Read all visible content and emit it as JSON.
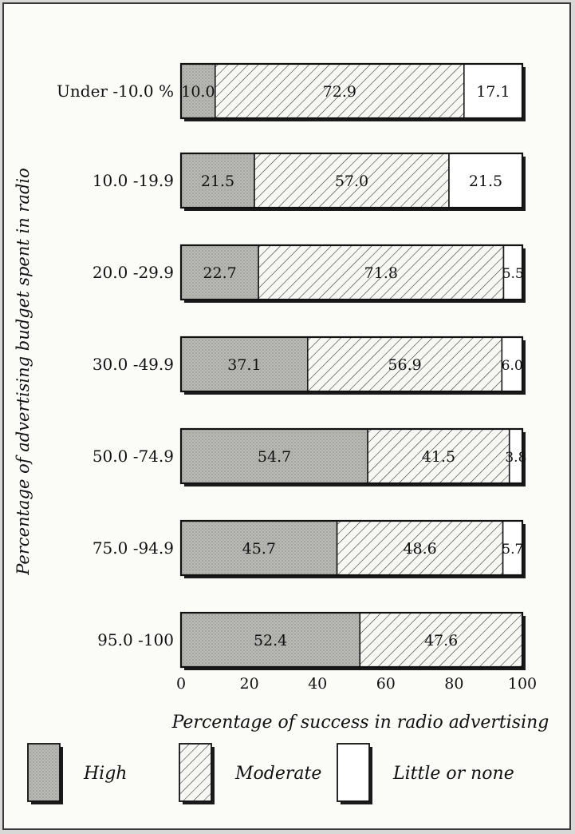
{
  "chart_data": {
    "type": "bar",
    "stacked": true,
    "orientation": "horizontal",
    "title": "",
    "xlabel": "Percentage of success in radio advertising",
    "ylabel": "Percentage of advertising budget spent in radio",
    "xlim": [
      0,
      100
    ],
    "xticks": [
      "0",
      "20",
      "40",
      "60",
      "80",
      "100"
    ],
    "grid": false,
    "legend_position": "bottom",
    "categories": [
      "Under -10.0 %",
      "10.0 -19.9",
      "20.0 -29.9",
      "30.0 -49.9",
      "50.0 -74.9",
      "75.0 -94.9",
      "95.0 -100"
    ],
    "series": [
      {
        "name": "High",
        "values": [
          10.0,
          21.5,
          22.7,
          37.1,
          54.7,
          45.7,
          52.4
        ],
        "labels": [
          "10.0",
          "21.5",
          "22.7",
          "37.1",
          "54.7",
          "45.7",
          "52.4"
        ],
        "fill": "stipple",
        "color": "#a9a9a6"
      },
      {
        "name": "Moderate",
        "values": [
          72.9,
          57.0,
          71.8,
          56.9,
          41.5,
          48.6,
          47.6
        ],
        "labels": [
          "72.9",
          "57.0",
          "71.8",
          "56.9",
          "41.5",
          "48.6",
          "47.6"
        ],
        "fill": "hatch",
        "color": "#2a2a2a"
      },
      {
        "name": "Little or none",
        "values": [
          17.1,
          21.5,
          5.5,
          6.0,
          3.8,
          5.7,
          0
        ],
        "labels": [
          "17.1",
          "21.5",
          "5.5",
          "6.0",
          "3.8",
          "5.7",
          ""
        ],
        "fill": "blank",
        "color": "#ffffff"
      }
    ]
  }
}
